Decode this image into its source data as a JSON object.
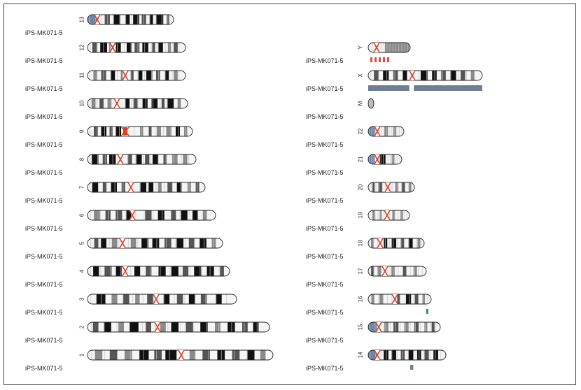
{
  "sample_label": "iPS-MK071-5",
  "colors": {
    "centromere": "#d9432a",
    "acrocentric_p": "#6b86ad",
    "track_gain_blue": "#6e7e93",
    "track_red": "#e4493a",
    "track_teal": "#2a8a7e",
    "band_black": "#111111",
    "band_dark": "#555555",
    "band_mid": "#8a8a8a",
    "band_light": "#c6c6c6"
  },
  "left_chromosomes": [
    {
      "name": "13",
      "length": 123,
      "cen": 14,
      "acro": true,
      "bands": [
        [
          0,
          0.12,
          "p"
        ],
        [
          0.2,
          0.26,
          "g2"
        ],
        [
          0.3,
          0.38,
          "g1"
        ],
        [
          0.44,
          0.49,
          "g1"
        ],
        [
          0.53,
          0.6,
          "g1"
        ],
        [
          0.63,
          0.68,
          "g2"
        ],
        [
          0.72,
          0.76,
          "g1"
        ],
        [
          0.8,
          0.88,
          "g1"
        ],
        [
          0.92,
          0.95,
          "g2"
        ]
      ]
    },
    {
      "name": "12",
      "length": 140,
      "cen": 36,
      "bands": [
        [
          0.05,
          0.1,
          "g2"
        ],
        [
          0.13,
          0.2,
          "g1"
        ],
        [
          0.22,
          0.24,
          "g3"
        ],
        [
          0.29,
          0.34,
          "g1"
        ],
        [
          0.4,
          0.45,
          "g1"
        ],
        [
          0.48,
          0.53,
          "g2"
        ],
        [
          0.56,
          0.62,
          "g1"
        ],
        [
          0.66,
          0.69,
          "g2"
        ],
        [
          0.72,
          0.77,
          "g1"
        ],
        [
          0.82,
          0.85,
          "g3"
        ],
        [
          0.88,
          0.92,
          "g2"
        ]
      ]
    },
    {
      "name": "11",
      "length": 140,
      "cen": 54,
      "bands": [
        [
          0.06,
          0.1,
          "g3"
        ],
        [
          0.14,
          0.19,
          "g2"
        ],
        [
          0.24,
          0.28,
          "g1"
        ],
        [
          0.34,
          0.36,
          "g3"
        ],
        [
          0.44,
          0.47,
          "g2"
        ],
        [
          0.52,
          0.56,
          "g1"
        ],
        [
          0.6,
          0.66,
          "g1"
        ],
        [
          0.7,
          0.74,
          "g2"
        ],
        [
          0.79,
          0.83,
          "g1"
        ],
        [
          0.88,
          0.92,
          "g3"
        ]
      ]
    },
    {
      "name": "10",
      "length": 143,
      "cen": 42,
      "bands": [
        [
          0.04,
          0.08,
          "g3"
        ],
        [
          0.12,
          0.16,
          "g2"
        ],
        [
          0.2,
          0.24,
          "g3"
        ],
        [
          0.38,
          0.42,
          "g1"
        ],
        [
          0.46,
          0.5,
          "g2"
        ],
        [
          0.55,
          0.6,
          "g1"
        ],
        [
          0.64,
          0.7,
          "g1"
        ],
        [
          0.74,
          0.77,
          "g2"
        ],
        [
          0.8,
          0.86,
          "g1"
        ],
        [
          0.9,
          0.93,
          "g3"
        ]
      ]
    },
    {
      "name": "9",
      "length": 150,
      "cen": 54,
      "cenwide": true,
      "bands": [
        [
          0.06,
          0.1,
          "g2"
        ],
        [
          0.13,
          0.18,
          "g1"
        ],
        [
          0.21,
          0.24,
          "g2"
        ],
        [
          0.27,
          0.32,
          "g1"
        ],
        [
          0.5,
          0.53,
          "g3"
        ],
        [
          0.58,
          0.61,
          "g2"
        ],
        [
          0.66,
          0.7,
          "g3"
        ],
        [
          0.75,
          0.8,
          "g3"
        ],
        [
          0.84,
          0.88,
          "g1"
        ],
        [
          0.92,
          0.95,
          "g3"
        ]
      ]
    },
    {
      "name": "8",
      "length": 155,
      "cen": 47,
      "bands": [
        [
          0.04,
          0.1,
          "g1"
        ],
        [
          0.14,
          0.18,
          "g2"
        ],
        [
          0.2,
          0.26,
          "g1"
        ],
        [
          0.37,
          0.41,
          "g2"
        ],
        [
          0.45,
          0.5,
          "g1"
        ],
        [
          0.53,
          0.57,
          "g2"
        ],
        [
          0.6,
          0.65,
          "g1"
        ],
        [
          0.7,
          0.73,
          "g2"
        ],
        [
          0.78,
          0.83,
          "g3"
        ],
        [
          0.88,
          0.92,
          "g3"
        ]
      ]
    },
    {
      "name": "7",
      "length": 168,
      "cen": 62,
      "bands": [
        [
          0.04,
          0.09,
          "g1"
        ],
        [
          0.13,
          0.16,
          "g2"
        ],
        [
          0.2,
          0.25,
          "g1"
        ],
        [
          0.29,
          0.32,
          "g2"
        ],
        [
          0.45,
          0.5,
          "g1"
        ],
        [
          0.52,
          0.56,
          "g1"
        ],
        [
          0.6,
          0.63,
          "g3"
        ],
        [
          0.68,
          0.72,
          "g2"
        ],
        [
          0.76,
          0.8,
          "g1"
        ],
        [
          0.85,
          0.88,
          "g3"
        ],
        [
          0.92,
          0.95,
          "g2"
        ]
      ]
    },
    {
      "name": "6",
      "length": 183,
      "cen": 64,
      "bands": [
        [
          0.05,
          0.1,
          "g3"
        ],
        [
          0.14,
          0.18,
          "g2"
        ],
        [
          0.22,
          0.27,
          "g2"
        ],
        [
          0.3,
          0.34,
          "g1"
        ],
        [
          0.45,
          0.5,
          "g2"
        ],
        [
          0.55,
          0.6,
          "g1"
        ],
        [
          0.65,
          0.69,
          "g2"
        ],
        [
          0.73,
          0.78,
          "g1"
        ],
        [
          0.82,
          0.86,
          "g1"
        ],
        [
          0.9,
          0.93,
          "g3"
        ]
      ]
    },
    {
      "name": "5",
      "length": 193,
      "cen": 50,
      "bands": [
        [
          0.05,
          0.08,
          "g2"
        ],
        [
          0.1,
          0.14,
          "g1"
        ],
        [
          0.18,
          0.22,
          "g3"
        ],
        [
          0.32,
          0.36,
          "g3"
        ],
        [
          0.4,
          0.45,
          "g1"
        ],
        [
          0.48,
          0.53,
          "g1"
        ],
        [
          0.57,
          0.62,
          "g2"
        ],
        [
          0.66,
          0.71,
          "g1"
        ],
        [
          0.75,
          0.79,
          "g2"
        ],
        [
          0.83,
          0.88,
          "g1"
        ],
        [
          0.92,
          0.95,
          "g3"
        ]
      ]
    },
    {
      "name": "4",
      "length": 203,
      "cen": 54,
      "bands": [
        [
          0.04,
          0.08,
          "g1"
        ],
        [
          0.12,
          0.17,
          "g2"
        ],
        [
          0.2,
          0.24,
          "g1"
        ],
        [
          0.33,
          0.37,
          "g1"
        ],
        [
          0.41,
          0.45,
          "g2"
        ],
        [
          0.5,
          0.55,
          "g1"
        ],
        [
          0.59,
          0.64,
          "g1"
        ],
        [
          0.67,
          0.71,
          "g2"
        ],
        [
          0.75,
          0.8,
          "g1"
        ],
        [
          0.84,
          0.89,
          "g1"
        ],
        [
          0.93,
          0.96,
          "g2"
        ]
      ]
    },
    {
      "name": "3",
      "length": 213,
      "cen": 98,
      "bands": [
        [
          0.06,
          0.12,
          "g1"
        ],
        [
          0.16,
          0.2,
          "g3"
        ],
        [
          0.24,
          0.28,
          "g2"
        ],
        [
          0.32,
          0.35,
          "g3"
        ],
        [
          0.4,
          0.44,
          "g2"
        ],
        [
          0.51,
          0.55,
          "g1"
        ],
        [
          0.6,
          0.64,
          "g2"
        ],
        [
          0.68,
          0.72,
          "g1"
        ],
        [
          0.76,
          0.8,
          "g2"
        ],
        [
          0.86,
          0.9,
          "g1"
        ]
      ]
    },
    {
      "name": "2",
      "length": 260,
      "cen": 100,
      "bands": [
        [
          0.03,
          0.06,
          "g2"
        ],
        [
          0.09,
          0.13,
          "g1"
        ],
        [
          0.17,
          0.2,
          "g3"
        ],
        [
          0.23,
          0.28,
          "g1"
        ],
        [
          0.32,
          0.35,
          "g2"
        ],
        [
          0.4,
          0.43,
          "g3"
        ],
        [
          0.46,
          0.5,
          "g1"
        ],
        [
          0.54,
          0.58,
          "g2"
        ],
        [
          0.62,
          0.66,
          "g1"
        ],
        [
          0.7,
          0.73,
          "g3"
        ],
        [
          0.77,
          0.81,
          "g1"
        ],
        [
          0.85,
          0.88,
          "g2"
        ],
        [
          0.91,
          0.94,
          "g1"
        ]
      ]
    },
    {
      "name": "1",
      "length": 265,
      "cen": 134,
      "bands": [
        [
          0.04,
          0.08,
          "g3"
        ],
        [
          0.12,
          0.16,
          "g2"
        ],
        [
          0.2,
          0.24,
          "g3"
        ],
        [
          0.28,
          0.33,
          "g1"
        ],
        [
          0.36,
          0.4,
          "g2"
        ],
        [
          0.42,
          0.48,
          "g1"
        ],
        [
          0.55,
          0.58,
          "g3"
        ],
        [
          0.62,
          0.66,
          "g2"
        ],
        [
          0.7,
          0.74,
          "g1"
        ],
        [
          0.78,
          0.82,
          "g2"
        ],
        [
          0.86,
          0.9,
          "g1"
        ],
        [
          0.93,
          0.96,
          "g3"
        ]
      ]
    }
  ],
  "right_chromosomes": [
    {
      "name": "Y",
      "length": 60,
      "cen": 12,
      "bands": [
        [
          0.4,
          0.98,
          "g3"
        ]
      ],
      "track": {
        "type": "dashed",
        "color": "red",
        "from": 0.05,
        "to": 0.55
      }
    },
    {
      "name": "X",
      "length": 163,
      "cen": 63,
      "bands": [
        [
          0.05,
          0.09,
          "g2"
        ],
        [
          0.13,
          0.18,
          "g1"
        ],
        [
          0.22,
          0.26,
          "g2"
        ],
        [
          0.3,
          0.34,
          "g1"
        ],
        [
          0.46,
          0.52,
          "g1"
        ],
        [
          0.56,
          0.6,
          "g1"
        ],
        [
          0.64,
          0.68,
          "g2"
        ],
        [
          0.72,
          0.77,
          "g1"
        ],
        [
          0.81,
          0.85,
          "g2"
        ],
        [
          0.9,
          0.93,
          "g3"
        ]
      ],
      "track": {
        "type": "solid",
        "color": "blue",
        "segments": [
          [
            0.0,
            0.36
          ],
          [
            0.4,
            1.0
          ]
        ]
      }
    },
    {
      "name": "M",
      "length": 8,
      "cen": -1,
      "bands": [
        [
          0,
          1,
          "g3"
        ]
      ]
    },
    {
      "name": "22",
      "length": 51,
      "cen": 13,
      "acro": true,
      "bands": [
        [
          0,
          0.2,
          "p"
        ],
        [
          0.45,
          0.55,
          "g3"
        ],
        [
          0.7,
          0.78,
          "g3"
        ]
      ]
    },
    {
      "name": "21",
      "length": 48,
      "cen": 13,
      "acro": true,
      "bands": [
        [
          0,
          0.2,
          "p"
        ],
        [
          0.35,
          0.52,
          "g1"
        ],
        [
          0.7,
          0.78,
          "g3"
        ]
      ]
    },
    {
      "name": "20",
      "length": 66,
      "cen": 28,
      "bands": [
        [
          0.08,
          0.14,
          "g2"
        ],
        [
          0.22,
          0.3,
          "g2"
        ],
        [
          0.58,
          0.64,
          "g3"
        ],
        [
          0.72,
          0.8,
          "g2"
        ],
        [
          0.88,
          0.93,
          "g3"
        ]
      ]
    },
    {
      "name": "19",
      "length": 59,
      "cen": 27,
      "bands": [
        [
          0.1,
          0.16,
          "g3"
        ],
        [
          0.28,
          0.33,
          "g3"
        ],
        [
          0.58,
          0.64,
          "g3"
        ],
        [
          0.78,
          0.84,
          "g3"
        ]
      ]
    },
    {
      "name": "18",
      "length": 80,
      "cen": 17,
      "bands": [
        [
          0.05,
          0.1,
          "g3"
        ],
        [
          0.28,
          0.34,
          "g1"
        ],
        [
          0.42,
          0.5,
          "g1"
        ],
        [
          0.58,
          0.64,
          "g2"
        ],
        [
          0.72,
          0.8,
          "g1"
        ],
        [
          0.88,
          0.93,
          "g3"
        ]
      ]
    },
    {
      "name": "17",
      "length": 83,
      "cen": 24,
      "bands": [
        [
          0.05,
          0.1,
          "g2"
        ],
        [
          0.16,
          0.22,
          "g3"
        ],
        [
          0.4,
          0.46,
          "g3"
        ],
        [
          0.6,
          0.66,
          "g2"
        ],
        [
          0.78,
          0.84,
          "g3"
        ]
      ]
    },
    {
      "name": "16",
      "length": 90,
      "cen": 38,
      "bands": [
        [
          0.05,
          0.1,
          "g3"
        ],
        [
          0.18,
          0.24,
          "g3"
        ],
        [
          0.46,
          0.5,
          "g2"
        ],
        [
          0.6,
          0.68,
          "g1"
        ],
        [
          0.74,
          0.8,
          "g2"
        ],
        [
          0.86,
          0.9,
          "g3"
        ]
      ],
      "track": {
        "type": "solid",
        "color": "teal",
        "segments": [
          [
            0.92,
            0.94
          ]
        ],
        "tall": true
      }
    },
    {
      "name": "15",
      "length": 103,
      "cen": 15,
      "acro": true,
      "bands": [
        [
          0,
          0.12,
          "p"
        ],
        [
          0.22,
          0.28,
          "g3"
        ],
        [
          0.35,
          0.42,
          "g2"
        ],
        [
          0.5,
          0.56,
          "g3"
        ],
        [
          0.64,
          0.7,
          "g2"
        ],
        [
          0.78,
          0.82,
          "g3"
        ],
        [
          0.88,
          0.92,
          "g2"
        ]
      ]
    },
    {
      "name": "14",
      "length": 111,
      "cen": 13,
      "acro": true,
      "bands": [
        [
          0,
          0.12,
          "p"
        ],
        [
          0.2,
          0.26,
          "g1"
        ],
        [
          0.3,
          0.36,
          "g1"
        ],
        [
          0.42,
          0.47,
          "g2"
        ],
        [
          0.52,
          0.58,
          "g1"
        ],
        [
          0.63,
          0.68,
          "g1"
        ],
        [
          0.72,
          0.78,
          "g2"
        ],
        [
          0.84,
          0.9,
          "g1"
        ]
      ],
      "track": {
        "type": "solid",
        "color": "blue",
        "segments": [
          [
            0.54,
            0.58
          ]
        ],
        "tall": true
      }
    }
  ]
}
